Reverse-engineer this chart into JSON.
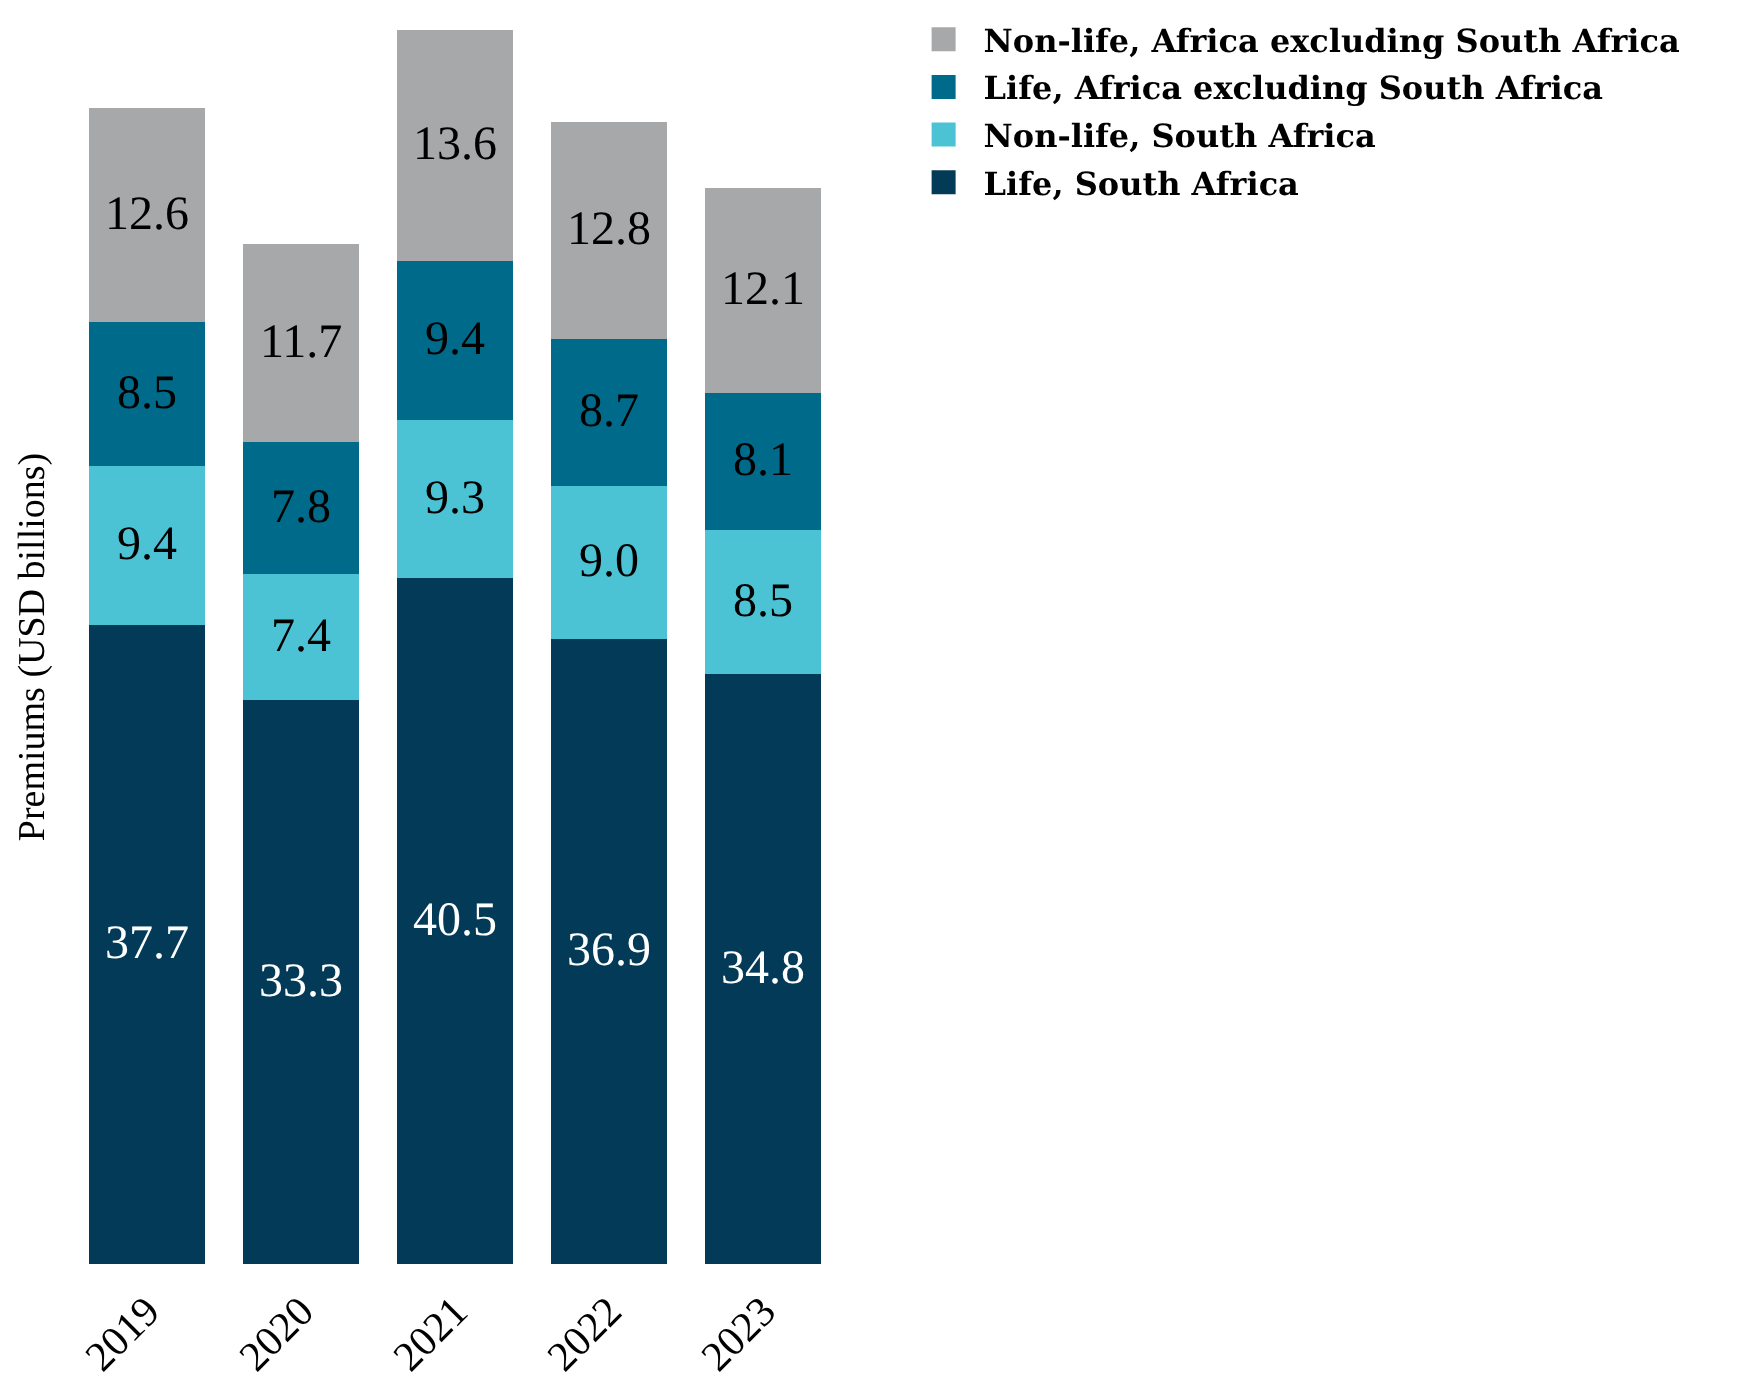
{
  "chart_data": {
    "type": "bar",
    "stacked": true,
    "ylabel": "Premiums (USD billions)",
    "legend": "top right",
    "tick_labels": "x",
    "categories": [
      "2019",
      "2020",
      "2021",
      "2022",
      "2023"
    ],
    "series": [
      {
        "name": "Life, South Africa",
        "color": "#023a57",
        "values": [
          37.7,
          33.3,
          40.5,
          36.9,
          34.8
        ],
        "value_labels": [
          "37.7",
          "33.3",
          "40.5",
          "36.9",
          "34.8"
        ]
      },
      {
        "name": "Non-life, South Africa",
        "color": "#4bc3d4",
        "values": [
          9.4,
          7.4,
          9.3,
          9.0,
          8.5
        ],
        "value_labels": [
          "9.4",
          "7.4",
          "9.3",
          "9.0",
          "8.5"
        ]
      },
      {
        "name": "Life, Africa excluding South Africa",
        "color": "#006a8a",
        "values": [
          8.5,
          7.8,
          9.4,
          8.7,
          8.1
        ],
        "value_labels": [
          "8.5",
          "7.8",
          "9.4",
          "8.7",
          "8.1"
        ]
      },
      {
        "name": "Non-life, Africa excluding South Africa",
        "color": "#a7a8aa",
        "values": [
          12.6,
          11.7,
          13.6,
          12.8,
          12.1
        ],
        "value_labels": [
          "12.6",
          "11.7",
          "13.6",
          "12.8",
          "12.1"
        ]
      }
    ]
  }
}
